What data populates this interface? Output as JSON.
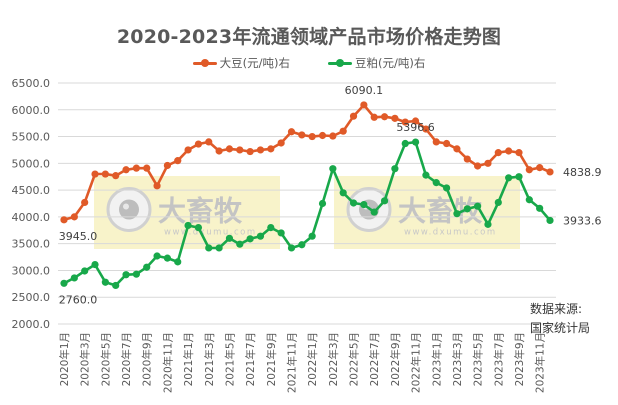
{
  "chart_data": {
    "type": "line",
    "title": "2020-2023年流通领域产品市场价格走势图",
    "xlabel": "",
    "ylabel": "",
    "ylim": [
      2000,
      6500
    ],
    "yticks": [
      2000,
      2500,
      3000,
      3500,
      4000,
      4500,
      5000,
      5500,
      6000,
      6500
    ],
    "ytick_labels": [
      "2000.0",
      "2500.0",
      "3000.0",
      "3500.0",
      "4000.0",
      "4500.0",
      "5000.0",
      "5500.0",
      "6000.0",
      "6500.0"
    ],
    "grid": true,
    "legend_position": "top",
    "x_tick_labels": [
      "2020年1月",
      "2020年3月",
      "2020年5月",
      "2020年7月",
      "2020年9月",
      "2020年11月",
      "2021年1月",
      "2021年3月",
      "2021年5月",
      "2021年7月",
      "2021年9月",
      "2021年11月",
      "2022年1月",
      "2022年3月",
      "2022年5月",
      "2022年7月",
      "2022年9月",
      "2022年11月",
      "2023年1月",
      "2023年3月",
      "2023年5月",
      "2023年7月",
      "2023年9月",
      "2023年11月"
    ],
    "x": [
      "2020-01",
      "2020-02",
      "2020-03",
      "2020-04",
      "2020-05",
      "2020-06",
      "2020-07",
      "2020-08",
      "2020-09",
      "2020-10",
      "2020-11",
      "2020-12",
      "2021-01",
      "2021-02",
      "2021-03",
      "2021-04",
      "2021-05",
      "2021-06",
      "2021-07",
      "2021-08",
      "2021-09",
      "2021-10",
      "2021-11",
      "2021-12",
      "2022-01",
      "2022-02",
      "2022-03",
      "2022-04",
      "2022-05",
      "2022-06",
      "2022-07",
      "2022-08",
      "2022-09",
      "2022-10",
      "2022-11",
      "2022-12",
      "2023-01",
      "2023-02",
      "2023-03",
      "2023-04",
      "2023-05",
      "2023-06",
      "2023-07",
      "2023-08",
      "2023-09",
      "2023-10",
      "2023-11",
      "2023-12"
    ],
    "series": [
      {
        "name": "大豆(元/吨)右",
        "color": "#E05A28",
        "values": [
          3945.0,
          4000,
          4270,
          4800,
          4800,
          4770,
          4880,
          4910,
          4910,
          4580,
          4960,
          5050,
          5250,
          5360,
          5400,
          5230,
          5270,
          5250,
          5220,
          5250,
          5270,
          5380,
          5590,
          5530,
          5500,
          5520,
          5510,
          5600,
          5880,
          6090.1,
          5860,
          5870,
          5840,
          5770,
          5790,
          5640,
          5400,
          5370,
          5270,
          5080,
          4950,
          5000,
          5200,
          5230,
          5200,
          4880,
          4920,
          4838.9
        ]
      },
      {
        "name": "豆粕(元/吨)右",
        "color": "#18A84A",
        "values": [
          2760.0,
          2860,
          2990,
          3110,
          2780,
          2720,
          2920,
          2930,
          3060,
          3270,
          3230,
          3160,
          3840,
          3800,
          3420,
          3420,
          3600,
          3490,
          3590,
          3640,
          3800,
          3700,
          3420,
          3480,
          3640,
          4250,
          4900,
          4450,
          4260,
          4230,
          4090,
          4300,
          4900,
          5370,
          5396.6,
          4780,
          4640,
          4540,
          4060,
          4150,
          4200,
          3860,
          4270,
          4730,
          4750,
          4320,
          4160,
          3933.6
        ]
      }
    ],
    "annotations": [
      {
        "series": 0,
        "index": 0,
        "text": "3945.0"
      },
      {
        "series": 0,
        "index": 29,
        "text": "6090.1"
      },
      {
        "series": 0,
        "index": 47,
        "text": "4838.9"
      },
      {
        "series": 1,
        "index": 0,
        "text": "2760.0"
      },
      {
        "series": 1,
        "index": 34,
        "text": "5396.6"
      },
      {
        "series": 1,
        "index": 47,
        "text": "3933.6"
      }
    ]
  },
  "legend": [
    {
      "label": "大豆(元/吨)右",
      "color": "#E05A28"
    },
    {
      "label": "豆粕(元/吨)右",
      "color": "#18A84A"
    }
  ],
  "watermark": {
    "brand": "大畜牧",
    "url": "www.dxumu.com"
  },
  "source": {
    "line1": "数据来源:",
    "line2": "国家统计局"
  }
}
